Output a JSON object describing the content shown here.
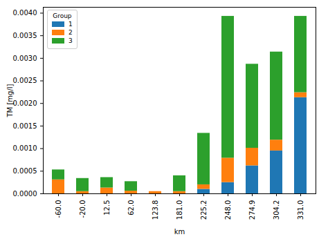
{
  "chart_data": {
    "type": "bar",
    "stacked": true,
    "x_label": "km",
    "y_label": "TM [mg/l]",
    "legend_title": "Group",
    "legend": "upper left",
    "categories": [
      "-60.0",
      "-20.0",
      "12.5",
      "62.0",
      "123.8",
      "181.0",
      "225.2",
      "248.0",
      "274.9",
      "304.2",
      "331.0"
    ],
    "series": [
      {
        "name": "1",
        "color": "#1f77b4",
        "values": [
          0,
          0,
          0,
          0,
          0,
          0,
          0.0001,
          0.00025,
          0.00062,
          0.00095,
          0.00213
        ]
      },
      {
        "name": "2",
        "color": "#ff7f0e",
        "values": [
          0.00031,
          5e-05,
          0.00013,
          6e-05,
          5e-05,
          5e-05,
          0.0001,
          0.00054,
          0.00039,
          0.00024,
          0.00011
        ]
      },
      {
        "name": "3",
        "color": "#2ca02c",
        "values": [
          0.00022,
          0.00029,
          0.00023,
          0.00021,
          0,
          0.00035,
          0.00114,
          0.00314,
          0.00186,
          0.00195,
          0.00169
        ]
      }
    ],
    "ylim": [
      0,
      0.00413
    ],
    "yticks": [
      {
        "value": 0,
        "label": "0.0000"
      },
      {
        "value": 0.0005,
        "label": "0.0005"
      },
      {
        "value": 0.001,
        "label": "0.0010"
      },
      {
        "value": 0.0015,
        "label": "0.0015"
      },
      {
        "value": 0.002,
        "label": "0.0020"
      },
      {
        "value": 0.0025,
        "label": "0.0025"
      },
      {
        "value": 0.003,
        "label": "0.0030"
      },
      {
        "value": 0.0035,
        "label": "0.0035"
      },
      {
        "value": 0.004,
        "label": "0.0040"
      }
    ],
    "grid": false
  }
}
